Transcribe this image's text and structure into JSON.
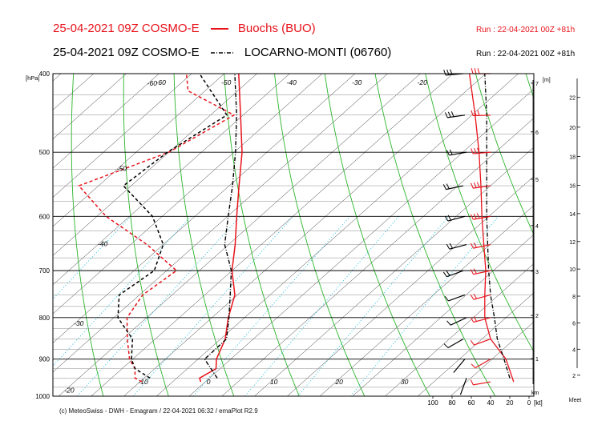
{
  "header": {
    "title_red": "25-04-2021 09Z COSMO-E",
    "legend_red_label": "Buochs (BUO)",
    "title_black": "25-04-2021 09Z COSMO-E",
    "legend_black_label": "LOCARNO-MONTI (06760)",
    "run_red": "Run : 22-04-2021 00Z +81h",
    "run_black": "Run : 22-04-2021 00Z +81h"
  },
  "footer": {
    "copyright": "(c) MeteoSwiss - DWH - Emagram / 22-04-2021  06:32 / emaPlot R2.9"
  },
  "colors": {
    "buochs": "#e8131b",
    "locarno": "#000000",
    "isotherm": "#1b1b1b",
    "dry_adiabat": "#2ab52a",
    "mixing_ratio": "#33c3e0",
    "isobar": "#000000"
  },
  "chart_data": {
    "type": "line",
    "title": "25-04-2021 09Z COSMO-E",
    "y_axis": {
      "label": "[hPa]",
      "ticks": [
        400,
        500,
        600,
        700,
        800,
        900,
        1000
      ],
      "scale": "log",
      "range": [
        1000,
        400
      ]
    },
    "x_axis": {
      "ticks": [
        -10,
        0,
        10,
        20,
        30
      ],
      "skewed": true
    },
    "isotherm_labels": [
      -60,
      -50,
      -40,
      -30,
      -20,
      -60,
      -50,
      -40,
      -30,
      -20
    ],
    "km_axis": {
      "label": "[m]",
      "unit_label": "km",
      "ticks": [
        1,
        2,
        3,
        4,
        5,
        6,
        7
      ]
    },
    "kfeet_axis": {
      "label": "kfeet",
      "ticks": [
        2,
        4,
        6,
        8,
        10,
        12,
        14,
        16,
        18,
        20,
        22
      ]
    },
    "wind_axis": {
      "label": "[kt]",
      "ticks": [
        100,
        80,
        60,
        40,
        20,
        0
      ]
    },
    "series": [
      {
        "name": "Buochs (BUO)",
        "color": "#e8131b",
        "temperature": [
          [
            960,
            -0.7
          ],
          [
            950,
            -1.5
          ],
          [
            925,
            -0.6
          ],
          [
            900,
            -2.2
          ],
          [
            850,
            -4.3
          ],
          [
            800,
            -7.5
          ],
          [
            750,
            -10.4
          ],
          [
            700,
            -15.0
          ],
          [
            650,
            -19.0
          ],
          [
            600,
            -23.6
          ],
          [
            550,
            -28.5
          ],
          [
            500,
            -33.8
          ],
          [
            450,
            -40.4
          ],
          [
            400,
            -47.8
          ]
        ],
        "dewpoint": [
          [
            960,
            -9.7
          ],
          [
            950,
            -11.4
          ],
          [
            925,
            -13.0
          ],
          [
            900,
            -15.5
          ],
          [
            850,
            -19.3
          ],
          [
            800,
            -23.0
          ],
          [
            750,
            -24.5
          ],
          [
            700,
            -23.5
          ],
          [
            650,
            -32.5
          ],
          [
            600,
            -43.6
          ],
          [
            550,
            -53.0
          ],
          [
            500,
            -45.0
          ],
          [
            450,
            -41.4
          ],
          [
            420,
            -52.6
          ],
          [
            400,
            -55.8
          ]
        ],
        "wind_speed_kt": [
          [
            960,
            8
          ],
          [
            900,
            5
          ],
          [
            850,
            12
          ],
          [
            800,
            20
          ],
          [
            750,
            24
          ],
          [
            700,
            24
          ],
          [
            650,
            23
          ],
          [
            600,
            25
          ],
          [
            550,
            26
          ],
          [
            500,
            26
          ],
          [
            450,
            28
          ],
          [
            400,
            30
          ]
        ],
        "wind_dir_deg": [
          [
            960,
            260
          ],
          [
            900,
            240
          ],
          [
            850,
            250
          ],
          [
            800,
            255
          ],
          [
            750,
            255
          ],
          [
            700,
            258
          ],
          [
            650,
            258
          ],
          [
            600,
            260
          ],
          [
            550,
            262
          ],
          [
            500,
            265
          ],
          [
            450,
            268
          ],
          [
            400,
            270
          ]
        ],
        "wind_profile": [
          [
            960,
            16
          ],
          [
            900,
            24
          ],
          [
            850,
            40
          ],
          [
            800,
            46
          ],
          [
            750,
            46
          ],
          [
            700,
            45
          ],
          [
            650,
            47
          ],
          [
            600,
            49
          ],
          [
            550,
            50
          ],
          [
            500,
            52
          ],
          [
            450,
            56
          ],
          [
            400,
            62
          ]
        ]
      },
      {
        "name": "LOCARNO-MONTI (06760)",
        "color": "#000000",
        "temperature": [
          [
            950,
            1.2
          ],
          [
            900,
            -4.0
          ],
          [
            850,
            -4.1
          ],
          [
            800,
            -7.4
          ],
          [
            750,
            -11.1
          ],
          [
            700,
            -15.1
          ],
          [
            650,
            -20.6
          ],
          [
            600,
            -24.9
          ],
          [
            550,
            -29.5
          ],
          [
            500,
            -34.8
          ],
          [
            450,
            -41.0
          ],
          [
            400,
            -48.4
          ]
        ],
        "dewpoint": [
          [
            950,
            -9.1
          ],
          [
            925,
            -13.0
          ],
          [
            900,
            -15.2
          ],
          [
            850,
            -18.5
          ],
          [
            800,
            -24.4
          ],
          [
            750,
            -28.1
          ],
          [
            700,
            -26.9
          ],
          [
            650,
            -30.0
          ],
          [
            600,
            -36.5
          ],
          [
            550,
            -46.2
          ],
          [
            500,
            -45.2
          ],
          [
            450,
            -42.5
          ],
          [
            400,
            -53.8
          ]
        ],
        "wind_speed_kt": [
          [
            950,
            3
          ],
          [
            900,
            4
          ],
          [
            850,
            6
          ],
          [
            800,
            10
          ],
          [
            750,
            14
          ],
          [
            700,
            16
          ],
          [
            650,
            18
          ],
          [
            600,
            20
          ],
          [
            550,
            22
          ],
          [
            500,
            24
          ],
          [
            450,
            26
          ],
          [
            400,
            28
          ]
        ],
        "wind_dir_deg": [
          [
            950,
            200
          ],
          [
            900,
            220
          ],
          [
            850,
            240
          ],
          [
            800,
            245
          ],
          [
            750,
            250
          ],
          [
            700,
            250
          ],
          [
            650,
            255
          ],
          [
            600,
            255
          ],
          [
            550,
            258
          ],
          [
            500,
            260
          ],
          [
            450,
            262
          ],
          [
            400,
            265
          ]
        ],
        "wind_profile": [
          [
            950,
            20
          ],
          [
            900,
            26
          ],
          [
            850,
            33
          ],
          [
            800,
            36
          ],
          [
            750,
            40
          ],
          [
            700,
            42
          ],
          [
            650,
            43
          ],
          [
            600,
            44
          ],
          [
            550,
            44
          ],
          [
            500,
            44
          ],
          [
            450,
            44
          ],
          [
            400,
            46
          ]
        ]
      }
    ]
  }
}
